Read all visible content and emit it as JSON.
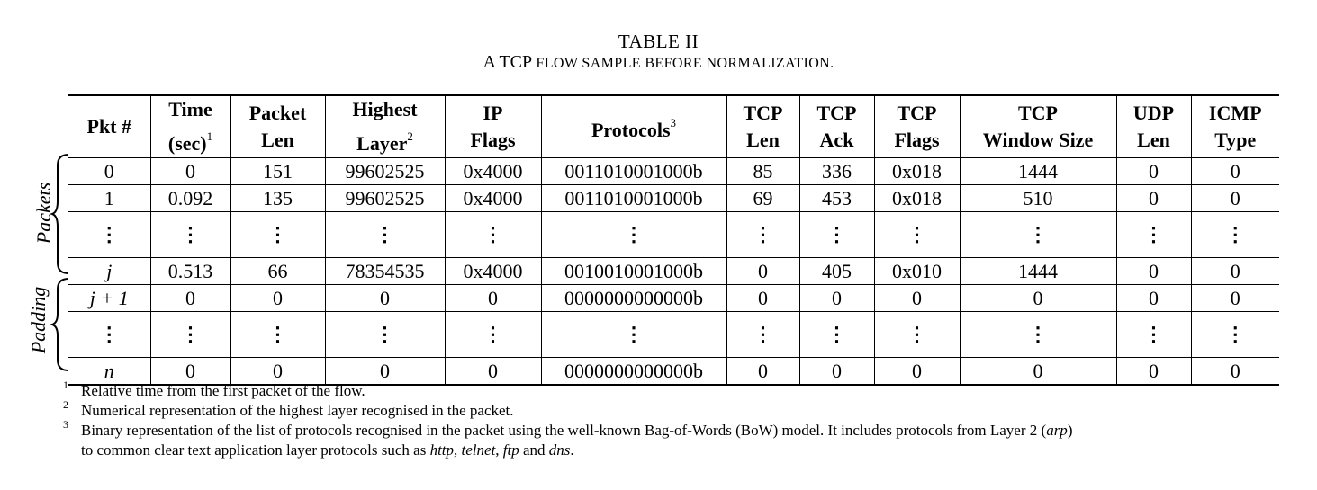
{
  "caption": {
    "label": "TABLE II",
    "title_lead": "A TCP",
    "title_rest": "FLOW SAMPLE BEFORE NORMALIZATION."
  },
  "headers": [
    {
      "line1": "Pkt #",
      "line2": "",
      "sup": ""
    },
    {
      "line1": "Time",
      "line2": "(sec)",
      "sup": "1"
    },
    {
      "line1": "Packet",
      "line2": "Len",
      "sup": ""
    },
    {
      "line1": "Highest",
      "line2": "Layer",
      "sup": "2"
    },
    {
      "line1": "IP",
      "line2": "Flags",
      "sup": ""
    },
    {
      "line1": "Protocols",
      "line2": "",
      "sup": "3"
    },
    {
      "line1": "TCP",
      "line2": "Len",
      "sup": ""
    },
    {
      "line1": "TCP",
      "line2": "Ack",
      "sup": ""
    },
    {
      "line1": "TCP",
      "line2": "Flags",
      "sup": ""
    },
    {
      "line1": "TCP",
      "line2": "Window Size",
      "sup": ""
    },
    {
      "line1": "UDP",
      "line2": "Len",
      "sup": ""
    },
    {
      "line1": "ICMP",
      "line2": "Type",
      "sup": ""
    }
  ],
  "rows": [
    {
      "kind": "data",
      "cells": [
        "0",
        "0",
        "151",
        "99602525",
        "0x4000",
        "0011010001000b",
        "85",
        "336",
        "0x018",
        "1444",
        "0",
        "0"
      ]
    },
    {
      "kind": "data",
      "cells": [
        "1",
        "0.092",
        "135",
        "99602525",
        "0x4000",
        "0011010001000b",
        "69",
        "453",
        "0x018",
        "510",
        "0",
        "0"
      ]
    },
    {
      "kind": "vdots"
    },
    {
      "kind": "data",
      "italic_first": true,
      "cells": [
        "j",
        "0.513",
        "66",
        "78354535",
        "0x4000",
        "0010010001000b",
        "0",
        "405",
        "0x010",
        "1444",
        "0",
        "0"
      ]
    },
    {
      "kind": "data",
      "italic_first": true,
      "cells": [
        "j + 1",
        "0",
        "0",
        "0",
        "0",
        "0000000000000b",
        "0",
        "0",
        "0",
        "0",
        "0",
        "0"
      ]
    },
    {
      "kind": "vdots"
    },
    {
      "kind": "data",
      "italic_first": true,
      "cells": [
        "n",
        "0",
        "0",
        "0",
        "0",
        "0000000000000b",
        "0",
        "0",
        "0",
        "0",
        "0",
        "0"
      ]
    }
  ],
  "vdots_glyph": "⋮",
  "group_labels": {
    "packets": "Packets",
    "padding": "Padding"
  },
  "footnotes": [
    {
      "num": "1",
      "segments": [
        {
          "t": "Relative time from the first packet of the flow."
        }
      ]
    },
    {
      "num": "2",
      "segments": [
        {
          "t": "Numerical representation of the highest layer recognised in the packet."
        }
      ]
    },
    {
      "num": "3",
      "segments": [
        {
          "t": "Binary representation of the list of protocols recognised in the packet using the well-known Bag-of-Words (BoW) model. It includes protocols from Layer 2 ("
        },
        {
          "t": "arp",
          "i": true
        },
        {
          "t": ")"
        },
        {
          "br": true
        },
        {
          "t": "to common clear text application layer protocols such as "
        },
        {
          "t": "http",
          "i": true
        },
        {
          "t": ", "
        },
        {
          "t": "telnet",
          "i": true
        },
        {
          "t": ", "
        },
        {
          "t": "ftp",
          "i": true
        },
        {
          "t": " and "
        },
        {
          "t": "dns",
          "i": true
        },
        {
          "t": "."
        }
      ]
    }
  ]
}
